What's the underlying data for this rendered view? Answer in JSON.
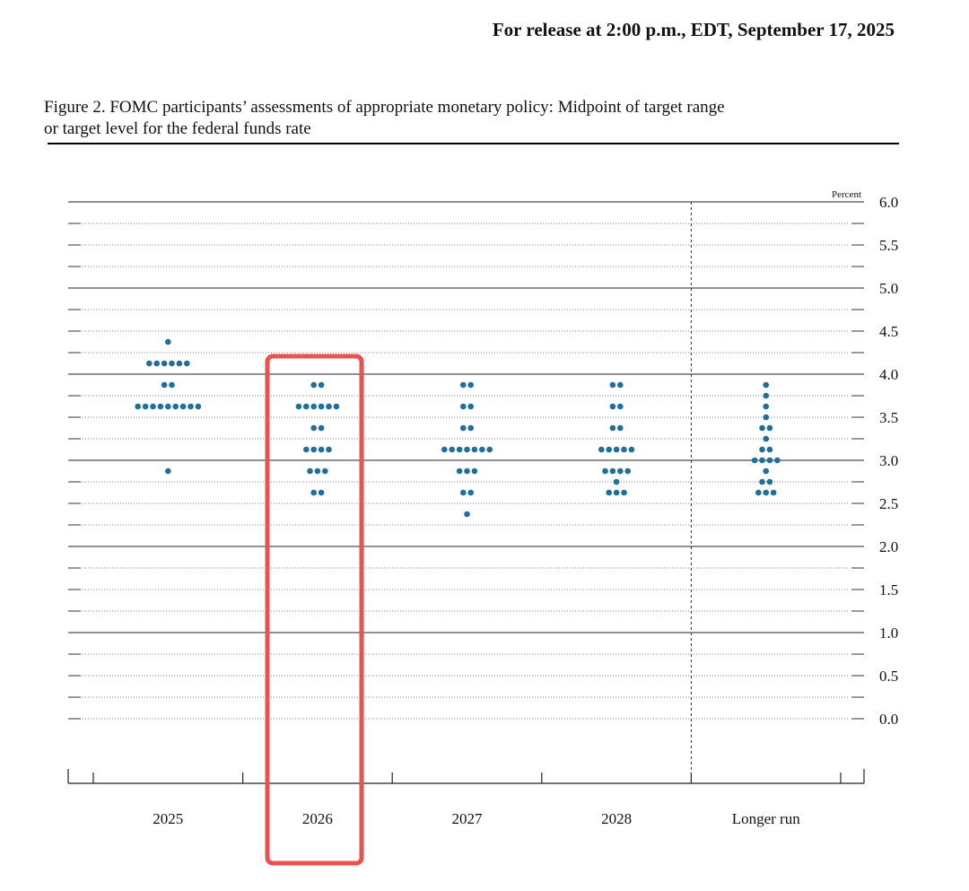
{
  "release": "For release at 2:00 p.m., EDT, September 17, 2025",
  "chart_data": {
    "type": "dot",
    "title_lines": [
      "Figure 2. FOMC participants’ assessments of appropriate monetary policy: Midpoint of target range",
      "or target level for the federal funds rate"
    ],
    "y_axis_label": "Percent",
    "categories": [
      "2025",
      "2026",
      "2027",
      "2028",
      "Longer run"
    ],
    "color": "#1f6f9c",
    "ylim": [
      -0.75,
      6
    ],
    "yticks": [
      {
        "value": 0,
        "label": "0.0"
      },
      {
        "value": 0.5,
        "label": "0.5"
      },
      {
        "value": 1,
        "label": "1.0"
      },
      {
        "value": 1.5,
        "label": "1.5"
      },
      {
        "value": 2,
        "label": "2.0"
      },
      {
        "value": 2.5,
        "label": "2.5"
      },
      {
        "value": 3,
        "label": "3.0"
      },
      {
        "value": 3.5,
        "label": "3.5"
      },
      {
        "value": 4,
        "label": "4.0"
      },
      {
        "value": 4.5,
        "label": "4.5"
      },
      {
        "value": 5,
        "label": "5.0"
      },
      {
        "value": 5.5,
        "label": "5.5"
      },
      {
        "value": 6,
        "label": "6.0"
      }
    ],
    "major_gridlines": [
      1,
      2,
      3,
      4,
      5,
      6
    ],
    "minor_gridlines": [
      0,
      0.25,
      0.5,
      0.75,
      1.25,
      1.5,
      1.75,
      2.25,
      2.5,
      2.75,
      3.25,
      3.5,
      3.75,
      4.25,
      4.5,
      4.75,
      5.25,
      5.5,
      5.75
    ],
    "dots": [
      [
        {
          "rate": 4.375,
          "count": 1
        },
        {
          "rate": 4.125,
          "count": 6
        },
        {
          "rate": 3.875,
          "count": 2
        },
        {
          "rate": 3.625,
          "count": 9
        },
        {
          "rate": 2.875,
          "count": 1
        }
      ],
      [
        {
          "rate": 3.875,
          "count": 2
        },
        {
          "rate": 3.625,
          "count": 6
        },
        {
          "rate": 3.375,
          "count": 2
        },
        {
          "rate": 3.125,
          "count": 4
        },
        {
          "rate": 2.875,
          "count": 3
        },
        {
          "rate": 2.625,
          "count": 2
        }
      ],
      [
        {
          "rate": 3.875,
          "count": 2
        },
        {
          "rate": 3.625,
          "count": 2
        },
        {
          "rate": 3.375,
          "count": 2
        },
        {
          "rate": 3.125,
          "count": 7
        },
        {
          "rate": 2.875,
          "count": 3
        },
        {
          "rate": 2.625,
          "count": 2
        },
        {
          "rate": 2.375,
          "count": 1
        }
      ],
      [
        {
          "rate": 3.875,
          "count": 2
        },
        {
          "rate": 3.625,
          "count": 2
        },
        {
          "rate": 3.375,
          "count": 2
        },
        {
          "rate": 3.125,
          "count": 5
        },
        {
          "rate": 2.875,
          "count": 4
        },
        {
          "rate": 2.75,
          "count": 1
        },
        {
          "rate": 2.625,
          "count": 3
        }
      ],
      [
        {
          "rate": 3.875,
          "count": 1
        },
        {
          "rate": 3.75,
          "count": 1
        },
        {
          "rate": 3.625,
          "count": 1
        },
        {
          "rate": 3.5,
          "count": 1
        },
        {
          "rate": 3.375,
          "count": 2
        },
        {
          "rate": 3.25,
          "count": 1
        },
        {
          "rate": 3.125,
          "count": 2
        },
        {
          "rate": 3,
          "count": 4
        },
        {
          "rate": 2.875,
          "count": 1
        },
        {
          "rate": 2.75,
          "count": 2
        },
        {
          "rate": 2.625,
          "count": 3
        }
      ]
    ]
  }
}
